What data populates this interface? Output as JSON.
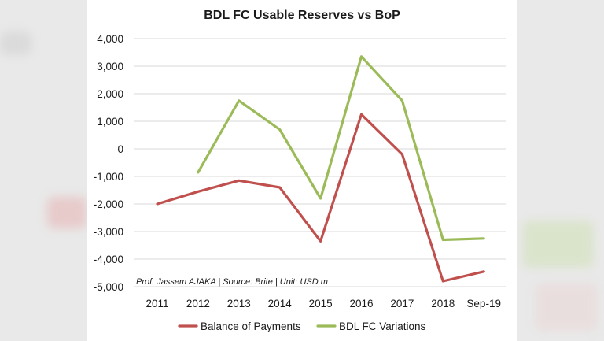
{
  "chart_data": {
    "type": "line",
    "title": "BDL FC Usable Reserves vs BoP",
    "categories": [
      "2011",
      "2012",
      "2013",
      "2014",
      "2015",
      "2016",
      "2017",
      "2018",
      "Sep-19"
    ],
    "ylim": [
      -5000,
      4000
    ],
    "yticks": [
      4000,
      3000,
      2000,
      1000,
      0,
      -1000,
      -2000,
      -3000,
      -4000,
      -5000
    ],
    "ytick_labels": [
      "4,000",
      "3,000",
      "2,000",
      "1,000",
      "0",
      "-1,000",
      "-2,000",
      "-3,000",
      "-4,000",
      "-5,000"
    ],
    "grid": true,
    "legend_position": "bottom",
    "annotation": "Prof. Jassem AJAKA | Source: Brite | Unit: USD m",
    "series": [
      {
        "name": "Balance of Payments",
        "color": "#c0504d",
        "values": [
          -2000,
          -1550,
          -1150,
          -1400,
          -3350,
          1250,
          -200,
          -4800,
          -4450
        ]
      },
      {
        "name": "BDL FC Variations",
        "color": "#9bbb59",
        "values": [
          null,
          -850,
          1750,
          700,
          -1800,
          3350,
          1750,
          -3300,
          -3250
        ]
      }
    ]
  }
}
